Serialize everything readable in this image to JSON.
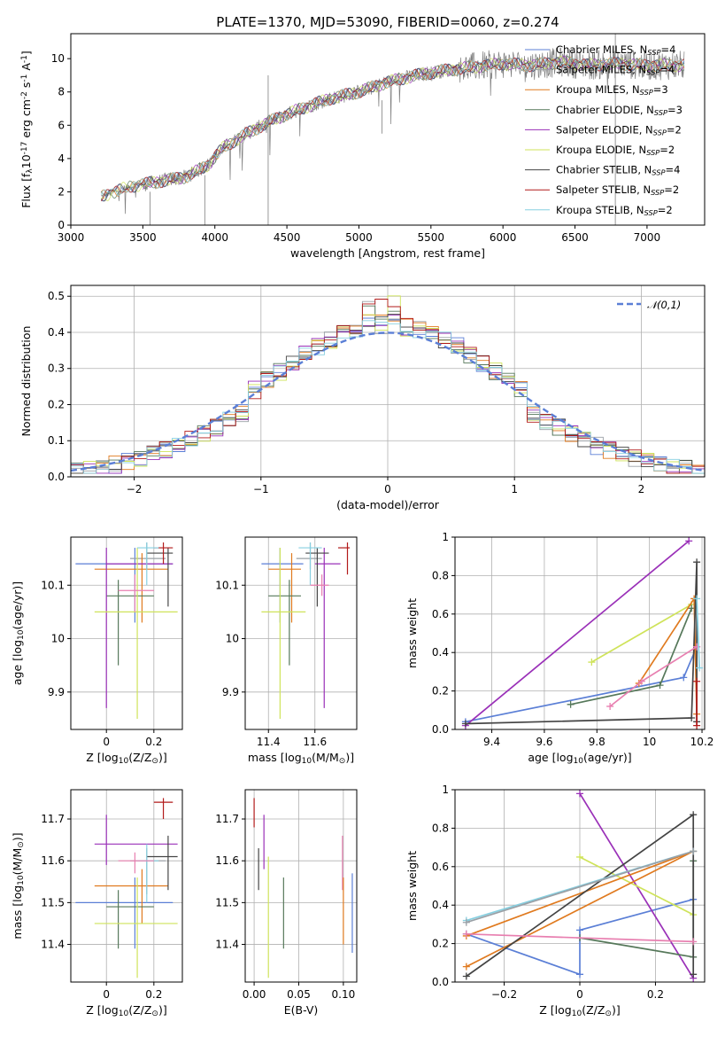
{
  "colors": {
    "Chabrier MILES": "#5b7fd6",
    "Salpeter MILES": "#9aa0a6",
    "Kroupa MILES": "#e07a1f",
    "Chabrier ELODIE": "#56785a",
    "Salpeter ELODIE": "#9a30b8",
    "Kroupa ELODIE": "#cfe35a",
    "Chabrier STELIB": "#444444",
    "Salpeter STELIB": "#b21a1a",
    "Kroupa STELIB": "#86cfe0",
    "pink": "#e87fb0",
    "normal": "#5b7fd6",
    "spectrum": "#7f7f7f"
  },
  "chart_data": [
    {
      "id": "spectrum",
      "type": "line",
      "title": "PLATE=1370, MJD=53090, FIBERID=0060, z=0.274",
      "xlabel": "wavelength [Angstrom, rest frame]",
      "ylabel": "Flux [f$_\\lambda$10$^{-17}$ erg cm$^{-2}$ s$^{-1}$ A$^{-1}$]",
      "xlim": [
        3000,
        7400
      ],
      "ylim": [
        0,
        11.5
      ],
      "xticks": [
        3000,
        3500,
        4000,
        4500,
        5000,
        5500,
        6000,
        6500,
        7000
      ],
      "yticks": [
        0,
        2,
        4,
        6,
        8,
        10
      ],
      "grid": false,
      "legend_position": "top-right",
      "legend": [
        {
          "name": "Chabrier MILES",
          "n": "4"
        },
        {
          "name": "Salpeter MILES",
          "n": "4"
        },
        {
          "name": "Kroupa MILES",
          "n": "3"
        },
        {
          "name": "Chabrier ELODIE",
          "n": "3"
        },
        {
          "name": "Salpeter ELODIE",
          "n": "2"
        },
        {
          "name": "Kroupa ELODIE",
          "n": "2"
        },
        {
          "name": "Chabrier STELIB",
          "n": "4"
        },
        {
          "name": "Salpeter STELIB",
          "n": "2"
        },
        {
          "name": "Kroupa STELIB",
          "n": "2"
        }
      ],
      "continuum": [
        [
          3210,
          1.7
        ],
        [
          3400,
          2.3
        ],
        [
          3600,
          2.6
        ],
        [
          3800,
          2.9
        ],
        [
          3950,
          3.6
        ],
        [
          4050,
          4.6
        ],
        [
          4200,
          5.4
        ],
        [
          4400,
          6.3
        ],
        [
          4600,
          7.0
        ],
        [
          4800,
          7.6
        ],
        [
          5000,
          8.0
        ],
        [
          5200,
          8.6
        ],
        [
          5400,
          9.0
        ],
        [
          5600,
          9.3
        ],
        [
          5800,
          9.5
        ],
        [
          6000,
          9.7
        ],
        [
          6200,
          9.6
        ],
        [
          6400,
          9.8
        ],
        [
          6600,
          9.6
        ],
        [
          6800,
          9.7
        ],
        [
          7000,
          9.6
        ],
        [
          7200,
          9.6
        ]
      ]
    },
    {
      "id": "residuals",
      "type": "line",
      "xlabel": "(data-model)/error",
      "ylabel": "Normed distribution",
      "xlim": [
        -2.5,
        2.5
      ],
      "ylim": [
        0,
        0.53
      ],
      "xticks": [
        -2,
        -1,
        0,
        1,
        2
      ],
      "yticks": [
        0.0,
        0.1,
        0.2,
        0.3,
        0.4,
        0.5
      ],
      "grid": true,
      "legend_position": "top-right",
      "normal_label": "$\\mathcal{N}(0,1)$",
      "bin_width": 0.1
    },
    {
      "id": "Z_age",
      "type": "scatter",
      "xlabel": "Z [log$_{10}$(Z/Z$_\\odot$)]",
      "ylabel": "age  [log$_{10}$(age/yr)]",
      "xlim": [
        -0.15,
        0.32
      ],
      "ylim": [
        9.83,
        10.19
      ],
      "xticks": [
        0.0,
        0.2
      ],
      "yticks": [
        9.9,
        10.0,
        10.1
      ],
      "grid": true,
      "points": [
        {
          "c": "Chabrier MILES",
          "x": 0.12,
          "y": 10.14,
          "xlo": -0.13,
          "xhi": 0.28,
          "ylo": 10.03,
          "yhi": 10.17
        },
        {
          "c": "Salpeter MILES",
          "x": 0.17,
          "y": 10.15,
          "xlo": 0.1,
          "xhi": 0.25,
          "ylo": 10.13,
          "yhi": 10.18
        },
        {
          "c": "Kroupa MILES",
          "x": 0.15,
          "y": 10.13,
          "xlo": -0.05,
          "xhi": 0.26,
          "ylo": 10.03,
          "yhi": 10.16
        },
        {
          "c": "Chabrier ELODIE",
          "x": 0.05,
          "y": 10.08,
          "xlo": 0.0,
          "xhi": 0.2,
          "ylo": 9.95,
          "yhi": 10.11
        },
        {
          "c": "Salpeter ELODIE",
          "x": 0.0,
          "y": 10.14,
          "xlo": 0.0,
          "xhi": 0.28,
          "ylo": 9.87,
          "yhi": 10.17
        },
        {
          "c": "Kroupa ELODIE",
          "x": 0.13,
          "y": 10.05,
          "xlo": -0.05,
          "xhi": 0.3,
          "ylo": 9.85,
          "yhi": 10.17
        },
        {
          "c": "Chabrier STELIB",
          "x": 0.26,
          "y": 10.16,
          "xlo": 0.17,
          "xhi": 0.28,
          "ylo": 10.06,
          "yhi": 10.17
        },
        {
          "c": "Salpeter STELIB",
          "x": 0.24,
          "y": 10.17,
          "xlo": 0.2,
          "xhi": 0.28,
          "ylo": 10.14,
          "yhi": 10.18
        },
        {
          "c": "Kroupa STELIB",
          "x": 0.17,
          "y": 10.17,
          "xlo": 0.13,
          "xhi": 0.22,
          "ylo": 10.1,
          "yhi": 10.18
        },
        {
          "c": "pink",
          "x": 0.12,
          "y": 10.09,
          "xlo": 0.05,
          "xhi": 0.2,
          "ylo": 10.05,
          "yhi": 10.12
        }
      ]
    },
    {
      "id": "mass_age",
      "type": "scatter",
      "xlabel": "mass [log$_{10}$(M/M$_\\odot$)]",
      "ylabel": "",
      "xlim": [
        11.3,
        11.78
      ],
      "ylim": [
        9.83,
        10.19
      ],
      "xticks": [
        11.4,
        11.6
      ],
      "yticks": [
        9.9,
        10.0,
        10.1
      ],
      "grid": true,
      "points": [
        {
          "c": "Chabrier MILES",
          "x": 11.45,
          "y": 10.14,
          "xlo": 11.37,
          "xhi": 11.55,
          "ylo": 10.03,
          "yhi": 10.17
        },
        {
          "c": "Salpeter MILES",
          "x": 11.58,
          "y": 10.15,
          "xlo": 11.52,
          "xhi": 11.63,
          "ylo": 10.13,
          "yhi": 10.18
        },
        {
          "c": "Kroupa MILES",
          "x": 11.5,
          "y": 10.13,
          "xlo": 11.4,
          "xhi": 11.54,
          "ylo": 10.03,
          "yhi": 10.16
        },
        {
          "c": "Chabrier ELODIE",
          "x": 11.49,
          "y": 10.08,
          "xlo": 11.4,
          "xhi": 11.54,
          "ylo": 9.95,
          "yhi": 10.11
        },
        {
          "c": "Salpeter ELODIE",
          "x": 11.64,
          "y": 10.14,
          "xlo": 11.6,
          "xhi": 11.71,
          "ylo": 9.87,
          "yhi": 10.17
        },
        {
          "c": "Kroupa ELODIE",
          "x": 11.45,
          "y": 10.05,
          "xlo": 11.37,
          "xhi": 11.56,
          "ylo": 9.85,
          "yhi": 10.17
        },
        {
          "c": "Chabrier STELIB",
          "x": 11.61,
          "y": 10.16,
          "xlo": 11.56,
          "xhi": 11.66,
          "ylo": 10.06,
          "yhi": 10.17
        },
        {
          "c": "Salpeter STELIB",
          "x": 11.74,
          "y": 10.17,
          "xlo": 11.7,
          "xhi": 11.75,
          "ylo": 10.12,
          "yhi": 10.18
        },
        {
          "c": "Kroupa STELIB",
          "x": 11.58,
          "y": 10.17,
          "xlo": 11.53,
          "xhi": 11.63,
          "ylo": 10.1,
          "yhi": 10.18
        },
        {
          "c": "pink",
          "x": 11.63,
          "y": 10.1,
          "xlo": 11.58,
          "xhi": 11.66,
          "ylo": 10.08,
          "yhi": 10.12
        }
      ]
    },
    {
      "id": "age_weight",
      "type": "line",
      "xlabel": "age  [log$_{10}$(age/yr)]",
      "ylabel": "mass weight",
      "xlim": [
        9.26,
        10.21
      ],
      "ylim": [
        0,
        1.0
      ],
      "xticks": [
        9.4,
        9.6,
        9.8,
        10.0,
        10.2
      ],
      "yticks": [
        0.0,
        0.2,
        0.4,
        0.6,
        0.8,
        1.0
      ],
      "grid": true,
      "series": [
        {
          "c": "Chabrier MILES",
          "points": [
            [
              9.3,
              0.04
            ],
            [
              10.13,
              0.27
            ],
            [
              10.18,
              0.43
            ]
          ]
        },
        {
          "c": "Salpeter ELODIE",
          "points": [
            [
              9.3,
              0.02
            ],
            [
              10.15,
              0.98
            ]
          ]
        },
        {
          "c": "Kroupa ELODIE",
          "points": [
            [
              9.78,
              0.35
            ],
            [
              10.16,
              0.65
            ]
          ]
        },
        {
          "c": "Chabrier ELODIE",
          "points": [
            [
              9.7,
              0.13
            ],
            [
              10.04,
              0.23
            ],
            [
              10.16,
              0.63
            ]
          ]
        },
        {
          "c": "Kroupa MILES",
          "points": [
            [
              9.96,
              0.24
            ],
            [
              10.17,
              0.68
            ],
            [
              10.18,
              0.08
            ]
          ]
        },
        {
          "c": "Chabrier STELIB",
          "points": [
            [
              9.3,
              0.03
            ],
            [
              10.16,
              0.06
            ],
            [
              10.18,
              0.87
            ],
            [
              10.18,
              0.04
            ]
          ]
        },
        {
          "c": "pink",
          "points": [
            [
              9.85,
              0.12
            ],
            [
              9.97,
              0.25
            ],
            [
              10.18,
              0.43
            ]
          ]
        },
        {
          "c": "Kroupa STELIB",
          "points": [
            [
              10.18,
              0.68
            ],
            [
              10.19,
              0.32
            ]
          ]
        },
        {
          "c": "Salpeter STELIB",
          "points": [
            [
              10.18,
              0.25
            ],
            [
              10.18,
              0.02
            ]
          ]
        }
      ]
    },
    {
      "id": "Z_mass",
      "type": "scatter",
      "xlabel": "Z [log$_{10}$(Z/Z$_\\odot$)]",
      "ylabel": "mass [log$_{10}$(M/M$_\\odot$)]",
      "xlim": [
        -0.15,
        0.32
      ],
      "ylim": [
        11.31,
        11.77
      ],
      "xticks": [
        0.0,
        0.2
      ],
      "yticks": [
        11.4,
        11.5,
        11.6,
        11.7
      ],
      "grid": true,
      "points": [
        {
          "c": "Chabrier MILES",
          "x": 0.12,
          "y": 11.5,
          "xlo": -0.13,
          "xhi": 0.28,
          "ylo": 11.39,
          "yhi": 11.56
        },
        {
          "c": "Salpeter MILES",
          "x": 0.17,
          "y": 11.6,
          "xlo": 0.1,
          "xhi": 0.25,
          "ylo": 11.52,
          "yhi": 11.63
        },
        {
          "c": "Kroupa MILES",
          "x": 0.15,
          "y": 11.54,
          "xlo": -0.05,
          "xhi": 0.26,
          "ylo": 11.45,
          "yhi": 11.58
        },
        {
          "c": "Chabrier ELODIE",
          "x": 0.05,
          "y": 11.49,
          "xlo": 0.0,
          "xhi": 0.2,
          "ylo": 11.39,
          "yhi": 11.53
        },
        {
          "c": "Salpeter ELODIE",
          "x": 0.0,
          "y": 11.64,
          "xlo": -0.05,
          "xhi": 0.3,
          "ylo": 11.59,
          "yhi": 11.71
        },
        {
          "c": "Kroupa ELODIE",
          "x": 0.13,
          "y": 11.45,
          "xlo": -0.05,
          "xhi": 0.3,
          "ylo": 11.32,
          "yhi": 11.56
        },
        {
          "c": "Chabrier STELIB",
          "x": 0.26,
          "y": 11.61,
          "xlo": 0.17,
          "xhi": 0.3,
          "ylo": 11.53,
          "yhi": 11.66
        },
        {
          "c": "Salpeter STELIB",
          "x": 0.24,
          "y": 11.74,
          "xlo": 0.2,
          "xhi": 0.28,
          "ylo": 11.7,
          "yhi": 11.75
        },
        {
          "c": "Kroupa STELIB",
          "x": 0.17,
          "y": 11.6,
          "xlo": 0.13,
          "xhi": 0.22,
          "ylo": 11.5,
          "yhi": 11.64
        },
        {
          "c": "pink",
          "x": 0.12,
          "y": 11.6,
          "xlo": 0.05,
          "xhi": 0.2,
          "ylo": 11.57,
          "yhi": 11.62
        }
      ]
    },
    {
      "id": "EBV_mass",
      "type": "scatter",
      "xlabel": "E(B-V)",
      "ylabel": "",
      "xlim": [
        -0.01,
        0.115
      ],
      "ylim": [
        11.31,
        11.77
      ],
      "xticks": [
        0.0,
        0.05,
        0.1
      ],
      "xticklabels": [
        "0.00",
        "0.05",
        "0.10"
      ],
      "yticks": [
        11.4,
        11.5,
        11.6,
        11.7
      ],
      "grid": true,
      "points": [
        {
          "c": "Salpeter STELIB",
          "x": 0.0,
          "y": 11.7,
          "ylo": 11.68,
          "yhi": 11.75
        },
        {
          "c": "Chabrier STELIB",
          "x": 0.005,
          "y": 11.58,
          "ylo": 11.53,
          "yhi": 11.63
        },
        {
          "c": "Salpeter ELODIE",
          "x": 0.011,
          "y": 11.64,
          "ylo": 11.58,
          "yhi": 11.71
        },
        {
          "c": "Kroupa ELODIE",
          "x": 0.016,
          "y": 11.45,
          "ylo": 11.32,
          "yhi": 11.61
        },
        {
          "c": "Chabrier ELODIE",
          "x": 0.033,
          "y": 11.49,
          "ylo": 11.39,
          "yhi": 11.56
        },
        {
          "c": "pink",
          "x": 0.099,
          "y": 11.6,
          "ylo": 11.53,
          "yhi": 11.66
        },
        {
          "c": "Kroupa MILES",
          "x": 0.1,
          "y": 11.47,
          "ylo": 11.4,
          "yhi": 11.56
        },
        {
          "c": "Chabrier MILES",
          "x": 0.11,
          "y": 11.48,
          "ylo": 11.38,
          "yhi": 11.57
        }
      ]
    },
    {
      "id": "Z_weight",
      "type": "line",
      "xlabel": "Z [log$_{10}$(Z/Z$_\\odot$)]",
      "ylabel": "mass weight",
      "xlim": [
        -0.33,
        0.33
      ],
      "ylim": [
        0,
        1.0
      ],
      "xticks": [
        -0.2,
        0.0,
        0.2
      ],
      "yticks": [
        0.0,
        0.2,
        0.4,
        0.6,
        0.8,
        1.0
      ],
      "grid": true,
      "series": [
        {
          "c": "Chabrier MILES",
          "points": [
            [
              -0.3,
              0.25
            ],
            [
              0.0,
              0.04
            ],
            [
              0.0,
              0.27
            ],
            [
              0.3,
              0.43
            ]
          ]
        },
        {
          "c": "Salpeter ELODIE",
          "points": [
            [
              0.0,
              0.98
            ],
            [
              0.3,
              0.02
            ]
          ]
        },
        {
          "c": "Kroupa ELODIE",
          "points": [
            [
              0.0,
              0.65
            ],
            [
              0.3,
              0.35
            ]
          ]
        },
        {
          "c": "Chabrier ELODIE",
          "points": [
            [
              0.0,
              0.23
            ],
            [
              0.3,
              0.13
            ],
            [
              0.3,
              0.63
            ]
          ]
        },
        {
          "c": "Kroupa MILES",
          "points": [
            [
              -0.3,
              0.08
            ],
            [
              0.3,
              0.68
            ],
            [
              -0.3,
              0.24
            ]
          ]
        },
        {
          "c": "Chabrier STELIB",
          "points": [
            [
              -0.3,
              0.03
            ],
            [
              0.3,
              0.87
            ],
            [
              0.3,
              0.04
            ]
          ]
        },
        {
          "c": "pink",
          "points": [
            [
              -0.3,
              0.25
            ],
            [
              0.3,
              0.21
            ]
          ]
        },
        {
          "c": "Kroupa STELIB",
          "points": [
            [
              -0.3,
              0.32
            ],
            [
              0.3,
              0.68
            ]
          ]
        },
        {
          "c": "Salpeter MILES",
          "points": [
            [
              -0.3,
              0.31
            ],
            [
              0.3,
              0.68
            ]
          ]
        }
      ]
    }
  ]
}
